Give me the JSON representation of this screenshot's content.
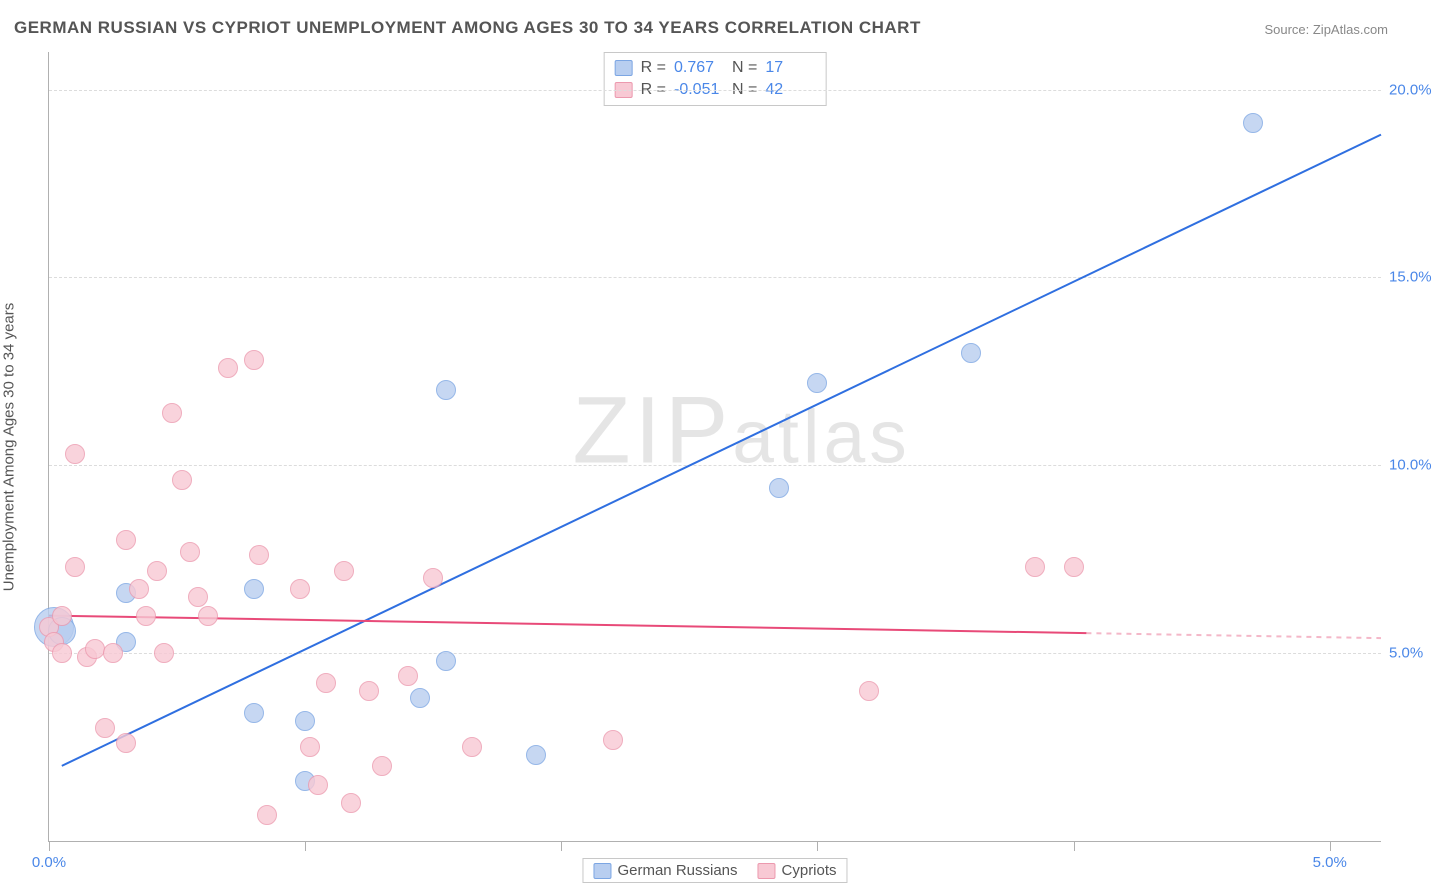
{
  "title": "GERMAN RUSSIAN VS CYPRIOT UNEMPLOYMENT AMONG AGES 30 TO 34 YEARS CORRELATION CHART",
  "source": "Source: ZipAtlas.com",
  "watermark": "ZIPatlas",
  "ylabel": "Unemployment Among Ages 30 to 34 years",
  "chart": {
    "type": "scatter-correlation",
    "background_color": "#ffffff",
    "grid_color": "#dcdcdc",
    "axis_color": "#b0b0b0",
    "tick_label_color": "#4a87e8",
    "label_fontsize": 15,
    "title_fontsize": 17,
    "xlim": [
      0,
      5.2
    ],
    "ylim": [
      0,
      21
    ],
    "yticks": [
      5,
      10,
      15,
      20
    ],
    "ytick_labels": [
      "5.0%",
      "10.0%",
      "15.0%",
      "20.0%"
    ],
    "xticks": [
      0,
      1,
      2,
      3,
      4,
      5
    ],
    "xtick_labels_shown": {
      "0": "0.0%",
      "5": "5.0%"
    },
    "series": [
      {
        "name": "German Russians",
        "label": "German Russians",
        "color_fill": "#b8cef0",
        "color_stroke": "#7ca6e3",
        "reg_color": "#2f6fe0",
        "reg_dash_color": "#a9c3ef",
        "R": "0.767",
        "N": "17",
        "marker_radius_px": 10,
        "regression": {
          "x1": 0.05,
          "y1": 2.0,
          "x2": 5.2,
          "y2": 18.8,
          "solid_until_x": 5.2
        },
        "points": [
          {
            "x": 0.02,
            "y": 5.7,
            "r": 20
          },
          {
            "x": 0.05,
            "y": 5.6,
            "r": 14
          },
          {
            "x": 0.3,
            "y": 5.3,
            "r": 10
          },
          {
            "x": 0.3,
            "y": 6.6,
            "r": 10
          },
          {
            "x": 0.8,
            "y": 6.7,
            "r": 10
          },
          {
            "x": 0.8,
            "y": 3.4,
            "r": 10
          },
          {
            "x": 1.0,
            "y": 1.6,
            "r": 10
          },
          {
            "x": 1.0,
            "y": 3.2,
            "r": 10
          },
          {
            "x": 1.45,
            "y": 3.8,
            "r": 10
          },
          {
            "x": 1.55,
            "y": 4.8,
            "r": 10
          },
          {
            "x": 1.55,
            "y": 12.0,
            "r": 10
          },
          {
            "x": 1.9,
            "y": 2.3,
            "r": 10
          },
          {
            "x": 2.85,
            "y": 9.4,
            "r": 10
          },
          {
            "x": 3.0,
            "y": 12.2,
            "r": 10
          },
          {
            "x": 3.6,
            "y": 13.0,
            "r": 10
          },
          {
            "x": 4.7,
            "y": 19.1,
            "r": 10
          }
        ]
      },
      {
        "name": "Cypriots",
        "label": "Cypriots",
        "color_fill": "#f8c9d4",
        "color_stroke": "#ec99ae",
        "reg_color": "#e84a78",
        "reg_dash_color": "#f4b7c8",
        "R": "-0.051",
        "N": "42",
        "marker_radius_px": 10,
        "regression": {
          "x1": 0.0,
          "y1": 6.0,
          "x2": 5.2,
          "y2": 5.4,
          "solid_until_x": 4.05
        },
        "points": [
          {
            "x": 0.0,
            "y": 5.7,
            "r": 10
          },
          {
            "x": 0.02,
            "y": 5.3,
            "r": 10
          },
          {
            "x": 0.05,
            "y": 5.0,
            "r": 10
          },
          {
            "x": 0.05,
            "y": 6.0,
            "r": 10
          },
          {
            "x": 0.1,
            "y": 7.3,
            "r": 10
          },
          {
            "x": 0.1,
            "y": 10.3,
            "r": 10
          },
          {
            "x": 0.15,
            "y": 4.9,
            "r": 10
          },
          {
            "x": 0.18,
            "y": 5.1,
            "r": 10
          },
          {
            "x": 0.22,
            "y": 3.0,
            "r": 10
          },
          {
            "x": 0.25,
            "y": 5.0,
            "r": 10
          },
          {
            "x": 0.3,
            "y": 8.0,
            "r": 10
          },
          {
            "x": 0.3,
            "y": 2.6,
            "r": 10
          },
          {
            "x": 0.35,
            "y": 6.7,
            "r": 10
          },
          {
            "x": 0.38,
            "y": 6.0,
            "r": 10
          },
          {
            "x": 0.42,
            "y": 7.2,
            "r": 10
          },
          {
            "x": 0.45,
            "y": 5.0,
            "r": 10
          },
          {
            "x": 0.48,
            "y": 11.4,
            "r": 10
          },
          {
            "x": 0.52,
            "y": 9.6,
            "r": 10
          },
          {
            "x": 0.55,
            "y": 7.7,
            "r": 10
          },
          {
            "x": 0.58,
            "y": 6.5,
            "r": 10
          },
          {
            "x": 0.62,
            "y": 6.0,
            "r": 10
          },
          {
            "x": 0.7,
            "y": 12.6,
            "r": 10
          },
          {
            "x": 0.8,
            "y": 12.8,
            "r": 10
          },
          {
            "x": 0.82,
            "y": 7.6,
            "r": 10
          },
          {
            "x": 0.85,
            "y": 0.7,
            "r": 10
          },
          {
            "x": 0.98,
            "y": 6.7,
            "r": 10
          },
          {
            "x": 1.02,
            "y": 2.5,
            "r": 10
          },
          {
            "x": 1.05,
            "y": 1.5,
            "r": 10
          },
          {
            "x": 1.08,
            "y": 4.2,
            "r": 10
          },
          {
            "x": 1.15,
            "y": 7.2,
            "r": 10
          },
          {
            "x": 1.18,
            "y": 1.0,
            "r": 10
          },
          {
            "x": 1.25,
            "y": 4.0,
            "r": 10
          },
          {
            "x": 1.3,
            "y": 2.0,
            "r": 10
          },
          {
            "x": 1.4,
            "y": 4.4,
            "r": 10
          },
          {
            "x": 1.5,
            "y": 7.0,
            "r": 10
          },
          {
            "x": 1.65,
            "y": 2.5,
            "r": 10
          },
          {
            "x": 2.2,
            "y": 2.7,
            "r": 10
          },
          {
            "x": 3.2,
            "y": 4.0,
            "r": 10
          },
          {
            "x": 3.85,
            "y": 7.3,
            "r": 10
          },
          {
            "x": 4.0,
            "y": 7.3,
            "r": 10
          }
        ]
      }
    ]
  }
}
